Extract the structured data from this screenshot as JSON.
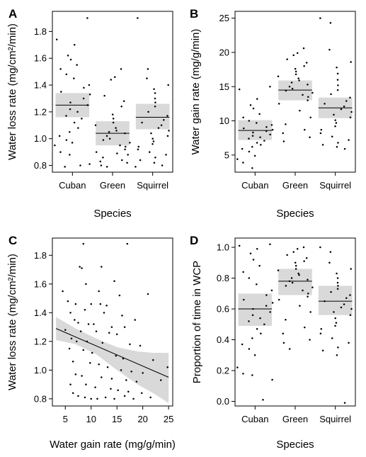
{
  "chart_data": [
    {
      "panel_letter": "A",
      "type": "scatter",
      "xlabel": "Species",
      "ylabel": "Water loss rate (mg/cm²/min)",
      "categories": [
        "Cuban",
        "Green",
        "Squirrel"
      ],
      "ylim": [
        0.75,
        1.95
      ],
      "yticks": [
        0.8,
        1.0,
        1.2,
        1.4,
        1.6,
        1.8
      ],
      "groups": [
        {
          "name": "Cuban",
          "mean": 1.25,
          "ci": [
            1.16,
            1.34
          ],
          "points": [
            1.9,
            1.74,
            1.7,
            1.62,
            1.59,
            1.55,
            1.52,
            1.48,
            1.45,
            1.4,
            1.38,
            1.35,
            1.33,
            1.3,
            1.27,
            1.25,
            1.22,
            1.2,
            1.17,
            1.15,
            1.12,
            1.08,
            1.05,
            1.02,
            0.99,
            0.97,
            0.95,
            0.9,
            0.88,
            0.81,
            0.8,
            0.79
          ]
        },
        {
          "name": "Green",
          "mean": 1.04,
          "ci": [
            0.95,
            1.13
          ],
          "points": [
            1.52,
            1.46,
            1.44,
            1.32,
            1.28,
            1.24,
            1.18,
            1.15,
            1.12,
            1.1,
            1.08,
            1.06,
            1.05,
            1.04,
            1.02,
            1.0,
            0.99,
            0.97,
            0.95,
            0.94,
            0.92,
            0.9,
            0.89,
            0.88,
            0.86,
            0.84,
            0.83,
            0.82,
            0.8,
            0.79
          ]
        },
        {
          "name": "Squirrel",
          "mean": 1.16,
          "ci": [
            1.07,
            1.26
          ],
          "points": [
            1.9,
            1.52,
            1.45,
            1.4,
            1.37,
            1.34,
            1.3,
            1.27,
            1.24,
            1.2,
            1.17,
            1.14,
            1.12,
            1.1,
            1.08,
            1.06,
            1.04,
            1.02,
            1.0,
            0.98,
            0.96,
            0.94,
            0.92,
            0.9,
            0.88,
            0.86,
            0.84,
            0.82,
            0.8,
            0.79
          ]
        }
      ]
    },
    {
      "panel_letter": "B",
      "type": "scatter",
      "xlabel": "Species",
      "ylabel": "Water gain rate (mg/g/min)",
      "categories": [
        "Cuban",
        "Green",
        "Squirrel"
      ],
      "ylim": [
        2.5,
        26
      ],
      "yticks": [
        5,
        10,
        15,
        20,
        25
      ],
      "groups": [
        {
          "name": "Cuban",
          "mean": 8.6,
          "ci": [
            7.2,
            10.1
          ],
          "points": [
            15.0,
            14.6,
            13.2,
            12.3,
            11.8,
            11.0,
            10.5,
            10.0,
            9.7,
            9.4,
            9.1,
            8.9,
            8.7,
            8.5,
            8.3,
            8.0,
            7.8,
            7.6,
            7.4,
            7.1,
            6.8,
            6.5,
            6.2,
            5.9,
            5.5,
            4.9,
            4.4,
            3.9,
            3.1
          ]
        },
        {
          "name": "Green",
          "mean": 14.5,
          "ci": [
            13.0,
            15.9
          ],
          "points": [
            20.6,
            19.9,
            19.6,
            19.0,
            18.5,
            18.0,
            17.6,
            17.2,
            16.8,
            16.5,
            16.2,
            15.9,
            15.6,
            15.3,
            15.0,
            14.7,
            14.4,
            14.1,
            13.8,
            13.5,
            13.0,
            12.5,
            11.5,
            10.5,
            9.5,
            8.7,
            8.2,
            7.6,
            7.0
          ]
        },
        {
          "name": "Squirrel",
          "mean": 11.9,
          "ci": [
            10.4,
            13.4
          ],
          "points": [
            25.0,
            24.3,
            20.4,
            18.6,
            17.8,
            16.9,
            16.0,
            15.2,
            14.5,
            13.9,
            13.4,
            12.9,
            12.5,
            12.1,
            11.7,
            11.3,
            10.9,
            10.5,
            10.1,
            9.7,
            9.2,
            8.7,
            8.2,
            7.7,
            7.2,
            6.8,
            6.5,
            6.2,
            5.9
          ]
        }
      ]
    },
    {
      "panel_letter": "C",
      "type": "scatter",
      "xlabel": "Water gain rate (mg/g/min)",
      "ylabel": "Water loss rate (mg/cm²/min)",
      "xlim": [
        2.5,
        25.8
      ],
      "ylim": [
        0.75,
        1.92
      ],
      "xticks": [
        5,
        10,
        15,
        20,
        25
      ],
      "yticks": [
        0.8,
        1.0,
        1.2,
        1.4,
        1.6,
        1.8
      ],
      "fit": {
        "x": [
          3.2,
          25.0
        ],
        "y": [
          1.29,
          0.95
        ]
      },
      "band": {
        "x": [
          3.2,
          7,
          11,
          15,
          19,
          22,
          25
        ],
        "lower": [
          1.21,
          1.18,
          1.11,
          1.0,
          0.9,
          0.84,
          0.77
        ],
        "upper": [
          1.37,
          1.29,
          1.22,
          1.16,
          1.13,
          1.12,
          1.12
        ]
      },
      "points": [
        [
          8.5,
          1.88
        ],
        [
          17.0,
          1.88
        ],
        [
          7.8,
          1.72
        ],
        [
          8.2,
          1.71
        ],
        [
          12.0,
          1.72
        ],
        [
          14.5,
          1.62
        ],
        [
          9.0,
          1.6
        ],
        [
          4.5,
          1.55
        ],
        [
          11.5,
          1.55
        ],
        [
          15.5,
          1.52
        ],
        [
          21.0,
          1.53
        ],
        [
          5.5,
          1.48
        ],
        [
          7.0,
          1.46
        ],
        [
          10.0,
          1.46
        ],
        [
          11.8,
          1.46
        ],
        [
          13.0,
          1.45
        ],
        [
          6.0,
          1.4
        ],
        [
          8.8,
          1.42
        ],
        [
          12.5,
          1.4
        ],
        [
          16.0,
          1.38
        ],
        [
          18.5,
          1.35
        ],
        [
          6.8,
          1.35
        ],
        [
          7.5,
          1.33
        ],
        [
          9.5,
          1.32
        ],
        [
          10.5,
          1.32
        ],
        [
          14.0,
          1.3
        ],
        [
          16.5,
          1.3
        ],
        [
          5.0,
          1.28
        ],
        [
          8.0,
          1.27
        ],
        [
          11.0,
          1.27
        ],
        [
          13.5,
          1.26
        ],
        [
          15.0,
          1.25
        ],
        [
          6.2,
          1.22
        ],
        [
          7.2,
          1.2
        ],
        [
          9.2,
          1.2
        ],
        [
          12.2,
          1.19
        ],
        [
          17.5,
          1.18
        ],
        [
          19.5,
          1.17
        ],
        [
          5.8,
          1.15
        ],
        [
          8.5,
          1.14
        ],
        [
          10.2,
          1.12
        ],
        [
          14.8,
          1.1
        ],
        [
          16.2,
          1.08
        ],
        [
          22.0,
          1.07
        ],
        [
          6.5,
          1.06
        ],
        [
          9.8,
          1.05
        ],
        [
          11.5,
          1.04
        ],
        [
          13.2,
          1.02
        ],
        [
          15.8,
          1.0
        ],
        [
          17.8,
          0.99
        ],
        [
          20.0,
          0.98
        ],
        [
          7.0,
          0.97
        ],
        [
          8.2,
          0.96
        ],
        [
          12.0,
          0.95
        ],
        [
          14.0,
          0.94
        ],
        [
          16.8,
          0.93
        ],
        [
          18.8,
          0.92
        ],
        [
          23.5,
          0.93
        ],
        [
          6.0,
          0.9
        ],
        [
          9.0,
          0.9
        ],
        [
          10.8,
          0.88
        ],
        [
          13.8,
          0.87
        ],
        [
          15.2,
          0.86
        ],
        [
          17.2,
          0.85
        ],
        [
          19.8,
          0.84
        ],
        [
          24.8,
          1.02
        ],
        [
          6.5,
          0.84
        ],
        [
          7.5,
          0.82
        ],
        [
          8.8,
          0.81
        ],
        [
          11.2,
          0.8
        ],
        [
          12.8,
          0.81
        ],
        [
          14.5,
          0.8
        ],
        [
          16.5,
          0.82
        ],
        [
          18.2,
          0.8
        ],
        [
          21.5,
          0.81
        ],
        [
          10.0,
          0.8
        ]
      ]
    },
    {
      "panel_letter": "D",
      "type": "scatter",
      "xlabel": "Species",
      "ylabel": "Proportion of time in WCP",
      "categories": [
        "Cuban",
        "Green",
        "Squirrel"
      ],
      "ylim": [
        -0.03,
        1.06
      ],
      "yticks": [
        0.0,
        0.2,
        0.4,
        0.6,
        0.8,
        1.0
      ],
      "groups": [
        {
          "name": "Cuban",
          "mean": 0.6,
          "ci": [
            0.49,
            0.7
          ],
          "points": [
            1.02,
            1.01,
            0.99,
            0.96,
            0.92,
            0.88,
            0.84,
            0.8,
            0.76,
            0.72,
            0.69,
            0.66,
            0.64,
            0.62,
            0.6,
            0.58,
            0.56,
            0.54,
            0.52,
            0.5,
            0.47,
            0.44,
            0.41,
            0.37,
            0.34,
            0.3,
            0.22,
            0.18,
            0.17,
            0.14,
            0.01
          ]
        },
        {
          "name": "Green",
          "mean": 0.78,
          "ci": [
            0.69,
            0.86
          ],
          "points": [
            1.0,
            0.99,
            0.97,
            0.95,
            0.93,
            0.91,
            0.9,
            0.88,
            0.86,
            0.85,
            0.83,
            0.82,
            0.8,
            0.79,
            0.78,
            0.77,
            0.75,
            0.74,
            0.72,
            0.7,
            0.68,
            0.66,
            0.62,
            0.58,
            0.53,
            0.48,
            0.44,
            0.4,
            0.38,
            0.34
          ]
        },
        {
          "name": "Squirrel",
          "mean": 0.65,
          "ci": [
            0.56,
            0.75
          ],
          "points": [
            1.0,
            0.97,
            0.9,
            0.86,
            0.83,
            0.8,
            0.77,
            0.75,
            0.73,
            0.71,
            0.69,
            0.67,
            0.65,
            0.63,
            0.61,
            0.6,
            0.58,
            0.56,
            0.54,
            0.51,
            0.49,
            0.47,
            0.44,
            0.41,
            0.38,
            0.35,
            0.33,
            0.3,
            -0.01
          ]
        }
      ]
    }
  ]
}
